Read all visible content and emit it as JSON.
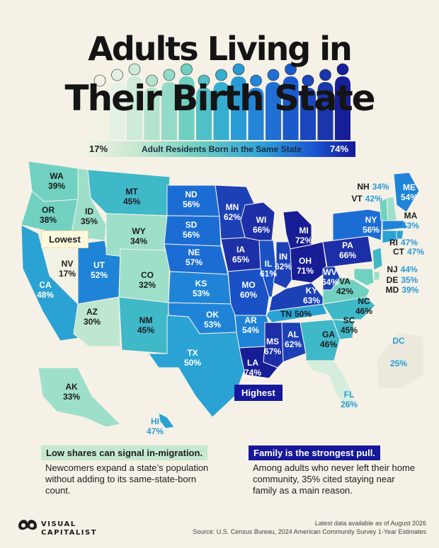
{
  "title": {
    "line1": "Adults Living in",
    "line2": "Their Birth State"
  },
  "legend": {
    "min": "17%",
    "label": "Adult Residents Born in the Same State",
    "max": "74%"
  },
  "colors": {
    "c17": "#f2f2e4",
    "c25": "#d5eedb",
    "c30": "#bfe6cf",
    "c35": "#9edfca",
    "c40": "#70d1c1",
    "c45": "#3fb8c8",
    "c48": "#2aa3d4",
    "c53": "#1f84d7",
    "c56": "#1b6dd4",
    "c60": "#1a52c6",
    "c63": "#1c40b6",
    "c66": "#1d2fa6",
    "c70": "#161d95"
  },
  "states": [
    {
      "code": "WA",
      "value": "39%"
    },
    {
      "code": "OR",
      "value": "38%"
    },
    {
      "code": "ID",
      "value": "35%"
    },
    {
      "code": "MT",
      "value": "45%"
    },
    {
      "code": "NV",
      "value": "17%"
    },
    {
      "code": "CA",
      "value": "48%"
    },
    {
      "code": "UT",
      "value": "52%"
    },
    {
      "code": "WY",
      "value": "34%"
    },
    {
      "code": "CO",
      "value": "32%"
    },
    {
      "code": "AZ",
      "value": "30%"
    },
    {
      "code": "NM",
      "value": "45%"
    },
    {
      "code": "ND",
      "value": "56%"
    },
    {
      "code": "SD",
      "value": "56%"
    },
    {
      "code": "NE",
      "value": "57%"
    },
    {
      "code": "KS",
      "value": "53%"
    },
    {
      "code": "OK",
      "value": "53%"
    },
    {
      "code": "TX",
      "value": "50%"
    },
    {
      "code": "MN",
      "value": "62%"
    },
    {
      "code": "IA",
      "value": "65%"
    },
    {
      "code": "MO",
      "value": "60%"
    },
    {
      "code": "AR",
      "value": "54%"
    },
    {
      "code": "LA",
      "value": "74%"
    },
    {
      "code": "WI",
      "value": "66%"
    },
    {
      "code": "IL",
      "value": "61%"
    },
    {
      "code": "MS",
      "value": "67%"
    },
    {
      "code": "AL",
      "value": "62%"
    },
    {
      "code": "TN",
      "value": "50%"
    },
    {
      "code": "KY",
      "value": "63%"
    },
    {
      "code": "IN",
      "value": "62%"
    },
    {
      "code": "MI",
      "value": "72%"
    },
    {
      "code": "OH",
      "value": "71%"
    },
    {
      "code": "WV",
      "value": "64%"
    },
    {
      "code": "PA",
      "value": "66%"
    },
    {
      "code": "NY",
      "value": "56%"
    },
    {
      "code": "VA",
      "value": "42%"
    },
    {
      "code": "NC",
      "value": "46%"
    },
    {
      "code": "SC",
      "value": "45%"
    },
    {
      "code": "GA",
      "value": "46%"
    },
    {
      "code": "FL",
      "value": "26%"
    },
    {
      "code": "ME",
      "value": "54%"
    },
    {
      "code": "NH",
      "value": "34%"
    },
    {
      "code": "VT",
      "value": "42%"
    },
    {
      "code": "MA",
      "value": "53%"
    },
    {
      "code": "RI",
      "value": "47%"
    },
    {
      "code": "CT",
      "value": "47%"
    },
    {
      "code": "NJ",
      "value": "44%"
    },
    {
      "code": "DE",
      "value": "35%"
    },
    {
      "code": "MD",
      "value": "39%"
    },
    {
      "code": "DC",
      "value": "25%"
    },
    {
      "code": "AK",
      "value": "33%"
    },
    {
      "code": "HI",
      "value": "47%"
    }
  ],
  "callouts": {
    "lowest": "Lowest",
    "highest": "Highest"
  },
  "notes": {
    "left_head": "Low shares can signal in-migration.",
    "left_body": "Newcomers expand a state’s population without adding to its same-state-born count.",
    "right_head": "Family is the strongest pull.",
    "right_body": "Among adults who never left their home community, 35% cited staying near family as a main reason."
  },
  "brand": {
    "line1": "VISUAL",
    "line2": "CAPITALIST"
  },
  "footer": {
    "date_note": "Latest data available as of August 2026",
    "source": "Source: U.S. Census Bureau, 2024 American Community Survey 1-Year Estimates"
  }
}
